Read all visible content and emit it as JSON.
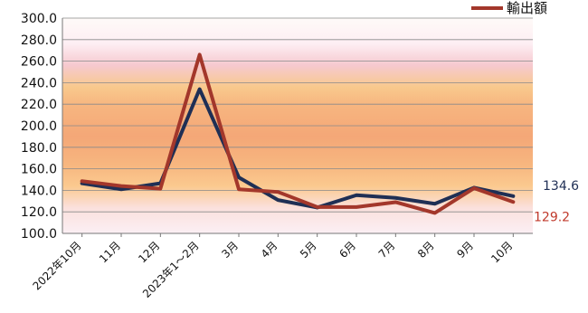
{
  "chart_data": {
    "type": "line",
    "categories": [
      "2022年10月",
      "11月",
      "12月",
      "2023年1～2月",
      "3月",
      "4月",
      "5月",
      "6月",
      "7月",
      "8月",
      "9月",
      "10月"
    ],
    "series": [
      {
        "name": "",
        "color": "#1f2f55",
        "values": [
          146.5,
          141.0,
          146.5,
          234.0,
          152.0,
          131.0,
          124.0,
          135.5,
          133.0,
          127.5,
          142.5,
          134.6
        ]
      },
      {
        "name": "輸出額",
        "color": "#a3372b",
        "values": [
          148.5,
          144.0,
          141.5,
          266.0,
          141.0,
          138.5,
          124.5,
          124.5,
          129.0,
          119.0,
          142.0,
          129.2
        ]
      }
    ],
    "y_ticks": [
      "100.0",
      "120.0",
      "140.0",
      "160.0",
      "180.0",
      "200.0",
      "220.0",
      "240.0",
      "260.0",
      "280.0",
      "300.0"
    ],
    "ylim": [
      100,
      300
    ],
    "end_labels": [
      {
        "text": "134.6",
        "color": "#1f2f55"
      },
      {
        "text": "129.2",
        "color": "#c0392b"
      }
    ],
    "legend": {
      "label": "輸出額",
      "color": "#a3372b",
      "position": "top-right"
    },
    "grid": true,
    "title": "",
    "xlabel": "",
    "ylabel": ""
  }
}
